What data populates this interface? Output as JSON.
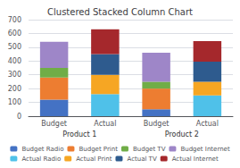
{
  "chart_data": {
    "type": "bar",
    "title": "Clustered Stacked Column Chart",
    "categories": [
      "Budget",
      "Actual",
      "Budget",
      "Actual"
    ],
    "annotations": [
      "Product 1",
      "Product 2"
    ],
    "series": [
      {
        "name": "Budget Radio",
        "color": "#4472C4",
        "values": [
          120,
          0,
          50,
          0
        ]
      },
      {
        "name": "Budget Print",
        "color": "#ED7D31",
        "values": [
          160,
          0,
          150,
          0
        ]
      },
      {
        "name": "Budget TV",
        "color": "#70AD47",
        "values": [
          70,
          0,
          50,
          0
        ]
      },
      {
        "name": "Budget Internet",
        "color": "#9E86C8",
        "values": [
          190,
          0,
          210,
          0
        ]
      },
      {
        "name": "Actual Radio",
        "color": "#4FC1E9",
        "values": [
          0,
          160,
          0,
          150
        ]
      },
      {
        "name": "Actual Print",
        "color": "#F6A623",
        "values": [
          0,
          140,
          0,
          100
        ]
      },
      {
        "name": "Actual TV",
        "color": "#2E5B8E",
        "values": [
          0,
          150,
          0,
          145
        ]
      },
      {
        "name": "Actual Internet",
        "color": "#A5282C",
        "values": [
          0,
          180,
          0,
          150
        ]
      }
    ],
    "ylim": [
      0,
      700
    ],
    "yticks": [
      0,
      100,
      200,
      300,
      400,
      500,
      600,
      700
    ],
    "stacked": true,
    "grid": true,
    "legend": "bottom"
  }
}
